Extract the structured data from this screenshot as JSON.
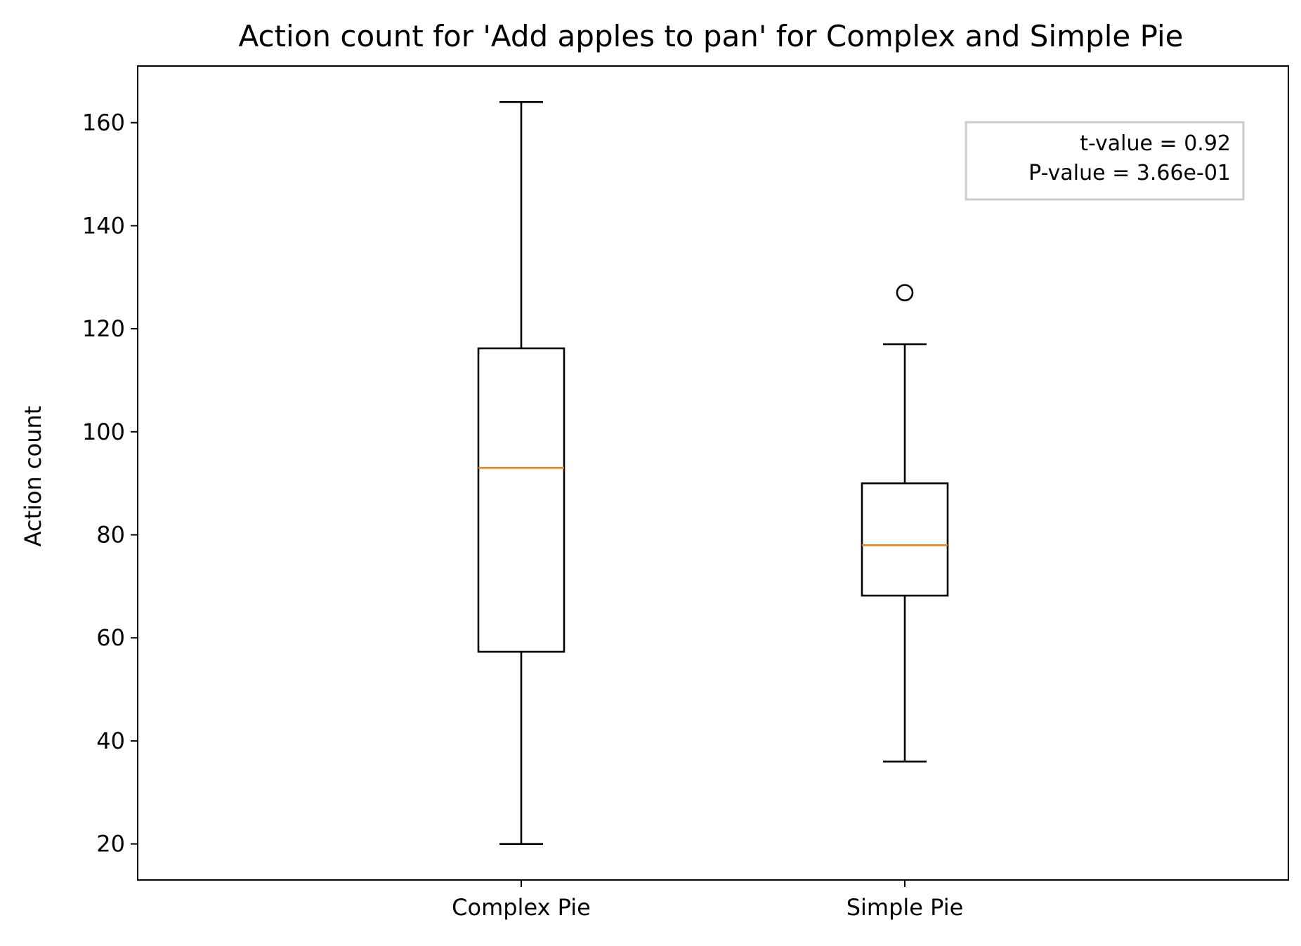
{
  "chart_data": {
    "type": "box",
    "title": "Action count for 'Add apples to pan' for Complex and Simple Pie",
    "xlabel": "",
    "ylabel": "Action count",
    "ylim": [
      13,
      171
    ],
    "yticks": [
      20,
      40,
      60,
      80,
      100,
      120,
      140,
      160
    ],
    "grid": false,
    "categories": [
      "Complex Pie",
      "Simple Pie"
    ],
    "boxes": [
      {
        "label": "Complex Pie",
        "whisker_low": 20,
        "q1": 57.3,
        "median": 93,
        "q3": 116.2,
        "whisker_high": 164,
        "outliers": []
      },
      {
        "label": "Simple Pie",
        "whisker_low": 36,
        "q1": 68.2,
        "median": 78,
        "q3": 90,
        "whisker_high": 117,
        "outliers": [
          127
        ]
      }
    ],
    "annotation": {
      "placement": "top-right",
      "lines": [
        "t-value = 0.92",
        "P-value = 3.66e-01"
      ]
    },
    "colors": {
      "box": "#000000",
      "median": "#ff7f0e",
      "annotation_border": "#cccccc"
    }
  }
}
